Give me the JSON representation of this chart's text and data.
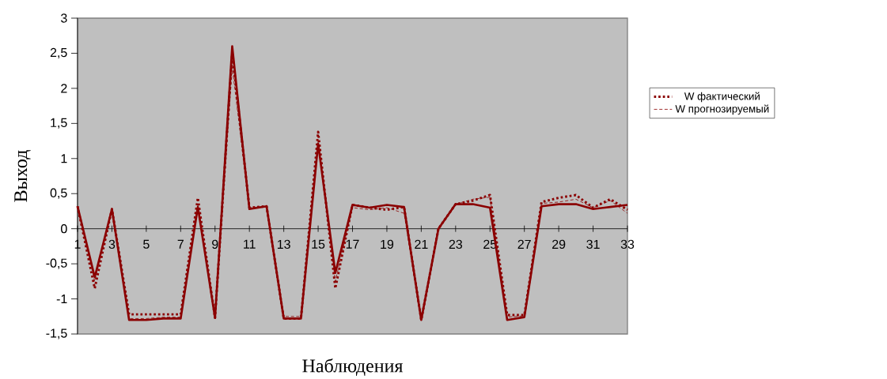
{
  "chart_data": {
    "type": "line",
    "xlabel": "Наблюдения",
    "ylabel": "Выход",
    "categories": [
      "1",
      null,
      "3",
      null,
      "5",
      null,
      "7",
      null,
      "9",
      null,
      "11",
      null,
      "13",
      null,
      "15",
      null,
      "17",
      null,
      "19",
      null,
      "21",
      null,
      "23",
      null,
      "25",
      null,
      "27",
      null,
      "29",
      null,
      "31",
      null,
      "33"
    ],
    "series": [
      {
        "color": "#8b0000",
        "line_style": "solid",
        "values": [
          0.32,
          -0.69,
          0.28,
          -1.3,
          -1.3,
          -1.28,
          -1.28,
          0.31,
          -1.27,
          2.6,
          0.28,
          0.32,
          -1.28,
          -1.28,
          1.21,
          -0.63,
          0.34,
          0.3,
          0.34,
          0.31,
          -1.3,
          0,
          0.35,
          0.35,
          0.3,
          -1.3,
          -1.26,
          0.32,
          0.35,
          0.35,
          0.28,
          0.31,
          0.34
        ]
      },
      {
        "name": "W фактический",
        "color": "#8b0000",
        "line_style": "dotted",
        "values": [
          0.32,
          -0.85,
          0.28,
          -1.22,
          -1.22,
          -1.22,
          -1.22,
          0.44,
          -1.27,
          2.5,
          0.3,
          0.32,
          -1.28,
          -1.28,
          1.38,
          -0.85,
          0.34,
          0.3,
          0.27,
          0.31,
          -1.3,
          0,
          0.35,
          0.4,
          0.48,
          -1.23,
          -1.23,
          0.38,
          0.44,
          0.48,
          0.3,
          0.42,
          0.27
        ]
      },
      {
        "name": "W прогнозируемый",
        "color": "#8b0000",
        "line_style": "dashed",
        "values": [
          0.32,
          -0.75,
          0.28,
          -1.28,
          -1.28,
          -1.26,
          -1.26,
          0.35,
          -1.25,
          2.3,
          0.3,
          0.32,
          -1.25,
          -1.25,
          1.25,
          -0.75,
          0.3,
          0.27,
          0.3,
          0.22,
          -1.28,
          0,
          0.35,
          0.42,
          0.45,
          -1.26,
          -1.24,
          0.36,
          0.38,
          0.42,
          0.3,
          0.4,
          0.22
        ]
      }
    ],
    "ylim": [
      -1.5,
      3
    ],
    "yticks": [
      {
        "value": -1.5,
        "label": "-1,5"
      },
      -1,
      {
        "value": -0.5,
        "label": "-0,5"
      },
      0,
      {
        "value": 0.5,
        "label": "0,5"
      },
      1,
      {
        "value": 1.5,
        "label": "1,5"
      },
      2,
      {
        "value": 2.5,
        "label": "2,5"
      },
      3
    ],
    "legend": "right"
  }
}
